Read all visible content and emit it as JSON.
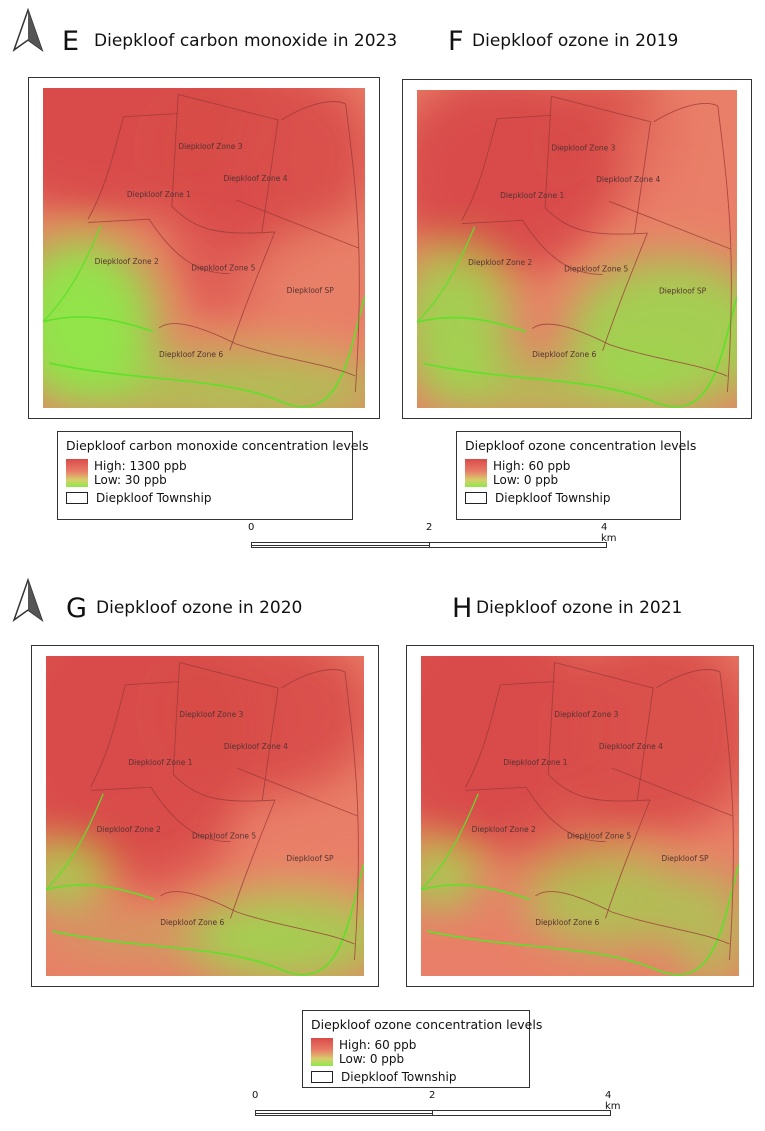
{
  "panels": [
    {
      "letter": "E",
      "title": "Diepkloof carbon monoxide in 2023",
      "style": "co"
    },
    {
      "letter": "F",
      "title": "Diepkloof ozone in 2019",
      "style": "o19"
    },
    {
      "letter": "G",
      "title": "Diepkloof ozone in 2020",
      "style": "o20"
    },
    {
      "letter": "H",
      "title": "Diepkloof ozone in 2021",
      "style": "o21"
    }
  ],
  "zones": [
    "Diepkloof Zone 1",
    "Diepkloof Zone 2",
    "Diepkloof Zone 3",
    "Diepkloof Zone 4",
    "Diepkloof Zone 5",
    "Diepkloof Zone 6",
    "Diepkloof SP"
  ],
  "legends": {
    "co": {
      "title": "Diepkloof carbon monoxide concentration levels",
      "high": "High: 1300 ppb",
      "low": "Low: 30 ppb",
      "township": "Diepkloof Township"
    },
    "ozone_top": {
      "title": "Diepkloof ozone concentration levels",
      "high": "High: 60 ppb",
      "low": "Low: 0 ppb",
      "township": "Diepkloof Township"
    },
    "ozone_bottom": {
      "title": "Diepkloof ozone concentration levels",
      "high": "High: 60 ppb",
      "low": "Low: 0 ppb",
      "township": "Diepkloof Township"
    }
  },
  "scale": {
    "ticks": [
      "0",
      "2",
      "4 km"
    ]
  },
  "colors": {
    "high": "#d84a48",
    "mid": "#e97f68",
    "low": "#8ee84a",
    "boundary": "#9b3a3a"
  }
}
